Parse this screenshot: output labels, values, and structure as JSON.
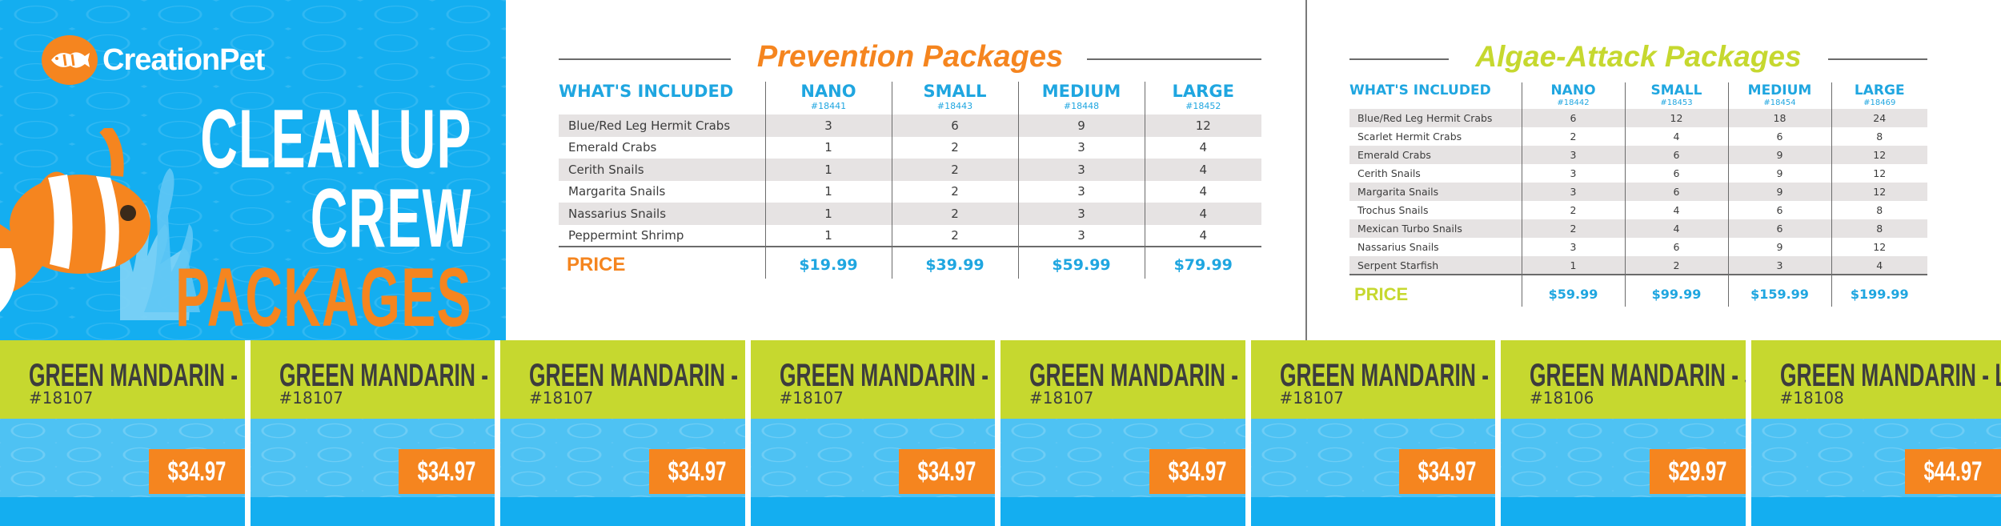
{
  "brand": {
    "name_part1": "Creation",
    "name_part2": "Pet",
    "logo_icon": "fish-logo-icon",
    "accent": "#f5851f",
    "blue": "#14aef0",
    "green": "#c6d82f"
  },
  "hero": {
    "line1": "CLEAN UP",
    "line2": "CREW",
    "line3": "PACKAGES"
  },
  "prevention": {
    "title": "Prevention Packages",
    "header_included": "WHAT'S INCLUDED",
    "sizes": [
      {
        "name": "NANO",
        "code": "#18441"
      },
      {
        "name": "SMALL",
        "code": "#18443"
      },
      {
        "name": "MEDIUM",
        "code": "#18448"
      },
      {
        "name": "LARGE",
        "code": "#18452"
      }
    ],
    "rows": [
      {
        "item": "Blue/Red Leg Hermit Crabs",
        "q": [
          "3",
          "6",
          "9",
          "12"
        ]
      },
      {
        "item": "Emerald Crabs",
        "q": [
          "1",
          "2",
          "3",
          "4"
        ]
      },
      {
        "item": "Cerith Snails",
        "q": [
          "1",
          "2",
          "3",
          "4"
        ]
      },
      {
        "item": "Margarita Snails",
        "q": [
          "1",
          "2",
          "3",
          "4"
        ]
      },
      {
        "item": "Nassarius Snails",
        "q": [
          "1",
          "2",
          "3",
          "4"
        ]
      },
      {
        "item": "Peppermint Shrimp",
        "q": [
          "1",
          "2",
          "3",
          "4"
        ]
      }
    ],
    "price_label": "PRICE",
    "prices": [
      "$19.99",
      "$39.99",
      "$59.99",
      "$79.99"
    ]
  },
  "algae": {
    "title": "Algae-Attack Packages",
    "header_included": "WHAT'S INCLUDED",
    "sizes": [
      {
        "name": "NANO",
        "code": "#18442"
      },
      {
        "name": "SMALL",
        "code": "#18453"
      },
      {
        "name": "MEDIUM",
        "code": "#18454"
      },
      {
        "name": "LARGE",
        "code": "#18469"
      }
    ],
    "rows": [
      {
        "item": "Blue/Red Leg Hermit Crabs",
        "q": [
          "6",
          "12",
          "18",
          "24"
        ]
      },
      {
        "item": "Scarlet Hermit Crabs",
        "q": [
          "2",
          "4",
          "6",
          "8"
        ]
      },
      {
        "item": "Emerald Crabs",
        "q": [
          "3",
          "6",
          "9",
          "12"
        ]
      },
      {
        "item": "Cerith Snails",
        "q": [
          "3",
          "6",
          "9",
          "12"
        ]
      },
      {
        "item": "Margarita Snails",
        "q": [
          "3",
          "6",
          "9",
          "12"
        ]
      },
      {
        "item": "Trochus Snails",
        "q": [
          "2",
          "4",
          "6",
          "8"
        ]
      },
      {
        "item": "Mexican Turbo Snails",
        "q": [
          "2",
          "4",
          "6",
          "8"
        ]
      },
      {
        "item": "Nassarius Snails",
        "q": [
          "3",
          "6",
          "9",
          "12"
        ]
      },
      {
        "item": "Serpent Starfish",
        "q": [
          "1",
          "2",
          "3",
          "4"
        ]
      }
    ],
    "price_label": "PRICE",
    "prices": [
      "$59.99",
      "$99.99",
      "$159.99",
      "$199.99"
    ]
  },
  "labels": [
    {
      "name": "GREEN MANDARIN - MD",
      "sku": "#18107",
      "price": "$34.97"
    },
    {
      "name": "GREEN MANDARIN - MD",
      "sku": "#18107",
      "price": "$34.97"
    },
    {
      "name": "GREEN MANDARIN - MD",
      "sku": "#18107",
      "price": "$34.97"
    },
    {
      "name": "GREEN MANDARIN - MD",
      "sku": "#18107",
      "price": "$34.97"
    },
    {
      "name": "GREEN MANDARIN - MD",
      "sku": "#18107",
      "price": "$34.97"
    },
    {
      "name": "GREEN MANDARIN - MD",
      "sku": "#18107",
      "price": "$34.97"
    },
    {
      "name": "GREEN MANDARIN - SM",
      "sku": "#18106",
      "price": "$29.97"
    },
    {
      "name": "GREEN MANDARIN - LG",
      "sku": "#18108",
      "price": "$44.97"
    }
  ]
}
